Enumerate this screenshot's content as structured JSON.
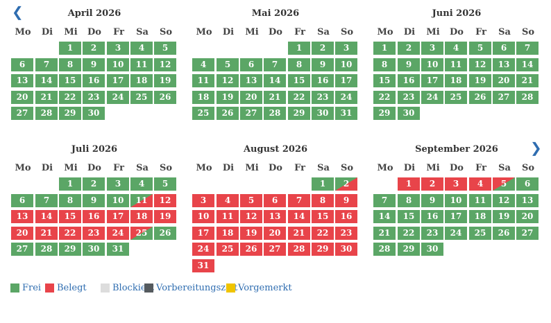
{
  "nav": {
    "prev": "❮",
    "next": "❯"
  },
  "weekdays": [
    "Mo",
    "Di",
    "Mi",
    "Do",
    "Fr",
    "Sa",
    "So"
  ],
  "colors": {
    "free": "#5ba666",
    "booked": "#e8444a",
    "blocked": "#dddddd",
    "prep": "#555a5e",
    "reserved": "#f0c400"
  },
  "months": [
    {
      "title": "April 2026",
      "offset": 2,
      "days": 30,
      "booked": [],
      "free_to_booked": [],
      "booked_to_free": []
    },
    {
      "title": "Mai 2026",
      "offset": 4,
      "days": 31,
      "booked": [],
      "free_to_booked": [],
      "booked_to_free": []
    },
    {
      "title": "Juni 2026",
      "offset": 0,
      "days": 30,
      "booked": [],
      "free_to_booked": [],
      "booked_to_free": []
    },
    {
      "title": "Juli 2026",
      "offset": 2,
      "days": 31,
      "booked": [
        12,
        13,
        14,
        15,
        16,
        17,
        18,
        19,
        20,
        21,
        22,
        23,
        24
      ],
      "free_to_booked": [
        11
      ],
      "booked_to_free": [
        25
      ]
    },
    {
      "title": "August 2026",
      "offset": 5,
      "days": 31,
      "booked": [
        3,
        4,
        5,
        6,
        7,
        8,
        9,
        10,
        11,
        12,
        13,
        14,
        15,
        16,
        17,
        18,
        19,
        20,
        21,
        22,
        23,
        24,
        25,
        26,
        27,
        28,
        29,
        30,
        31
      ],
      "free_to_booked": [
        2
      ],
      "booked_to_free": []
    },
    {
      "title": "September 2026",
      "offset": 1,
      "days": 30,
      "booked": [
        1,
        2,
        3,
        4
      ],
      "free_to_booked": [],
      "booked_to_free": [
        5
      ]
    }
  ],
  "legend": [
    {
      "label": "Frei",
      "color": "#5ba666"
    },
    {
      "label": "Belegt",
      "color": "#e8444a"
    },
    {
      "label": "Blockiert",
      "color": "#dddddd"
    },
    {
      "label": "Vorbereitungszeit",
      "color": "#555a5e"
    },
    {
      "label": "Vorgemerkt",
      "color": "#f0c400"
    }
  ]
}
